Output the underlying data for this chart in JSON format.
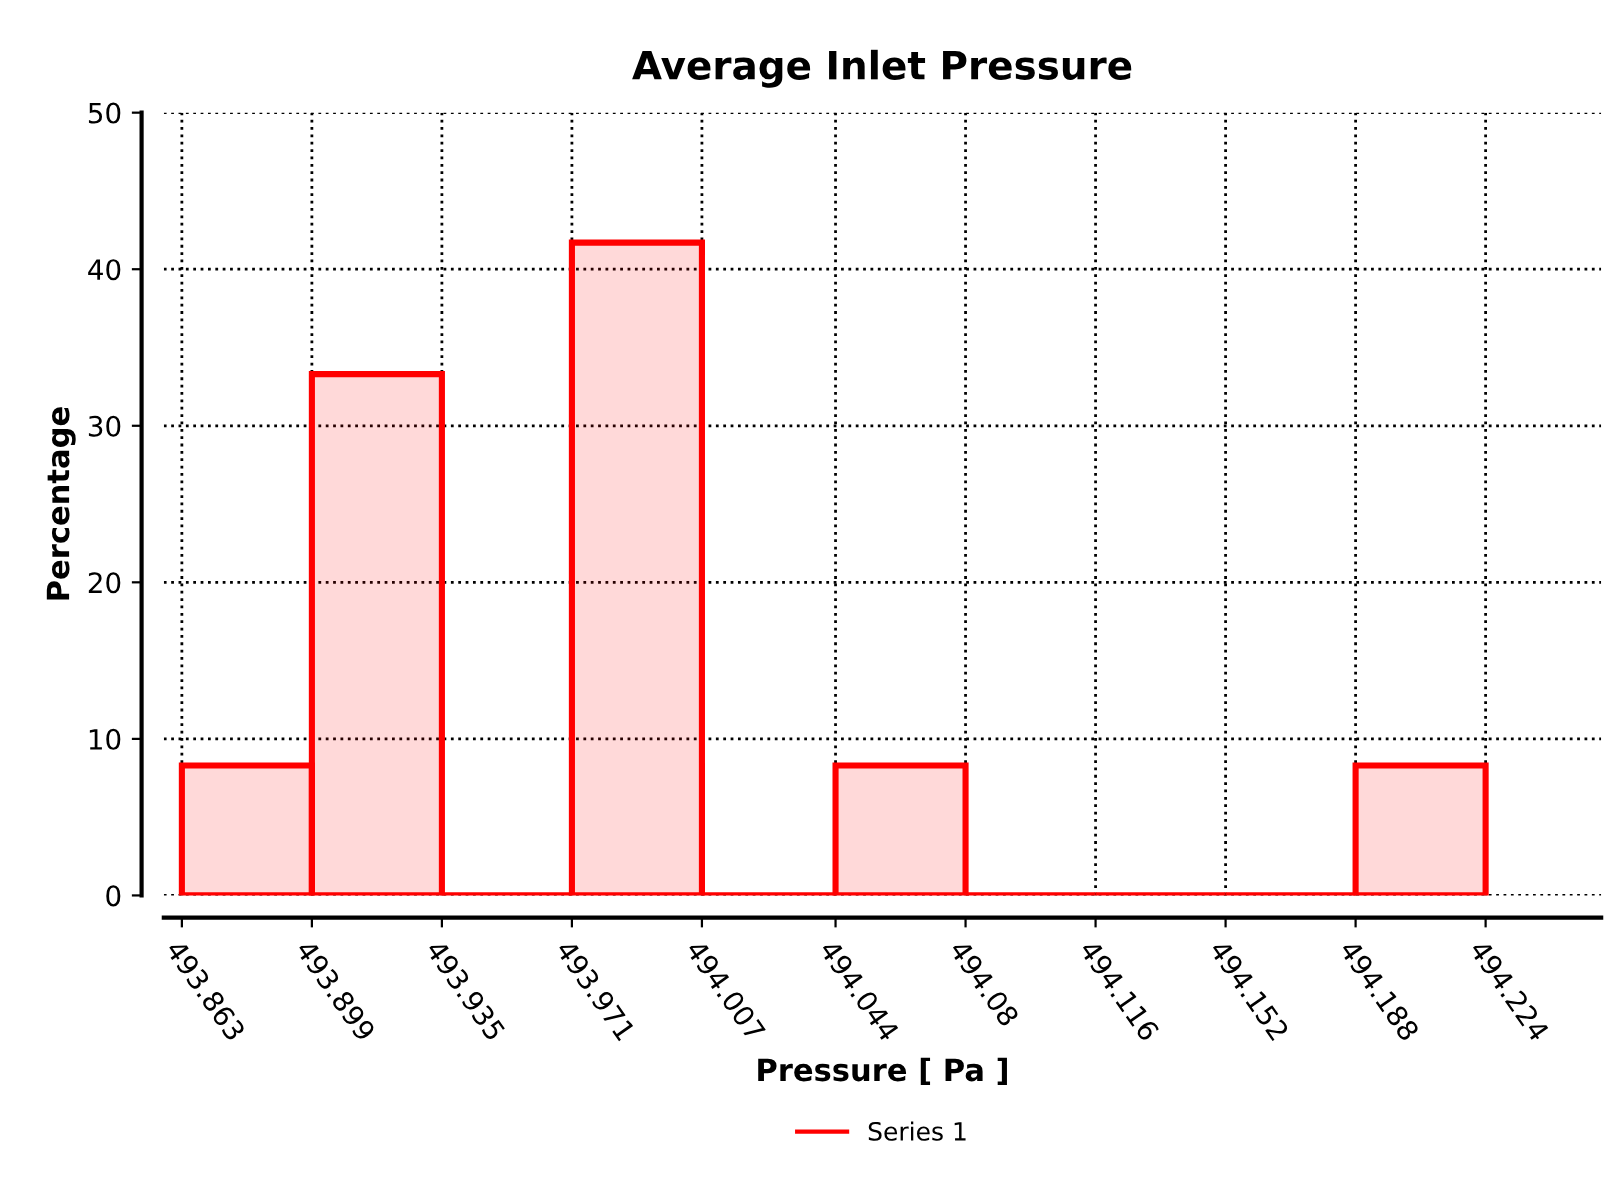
{
  "chart_data": {
    "type": "histogram",
    "title": "Average Inlet Pressure",
    "xlabel": "Pressure [ Pa ]",
    "ylabel": "Percentage",
    "bins": [
      493.863,
      493.899,
      493.935,
      493.971,
      494.007,
      494.044,
      494.08,
      494.116,
      494.152,
      494.188,
      494.224
    ],
    "series": [
      {
        "name": "Series 1",
        "color": "#ff0000",
        "values": [
          8.3,
          33.3,
          0,
          41.7,
          0,
          8.3,
          0,
          0,
          0,
          8.3
        ]
      }
    ],
    "xlim": [
      493.858,
      494.256
    ],
    "ylim": [
      0,
      50
    ],
    "xticks": [
      493.863,
      493.899,
      493.935,
      493.971,
      494.007,
      494.044,
      494.08,
      494.116,
      494.152,
      494.188,
      494.224
    ],
    "yticks": [
      0,
      10,
      20,
      30,
      40,
      50
    ],
    "grid": true,
    "legend": "bottom"
  }
}
